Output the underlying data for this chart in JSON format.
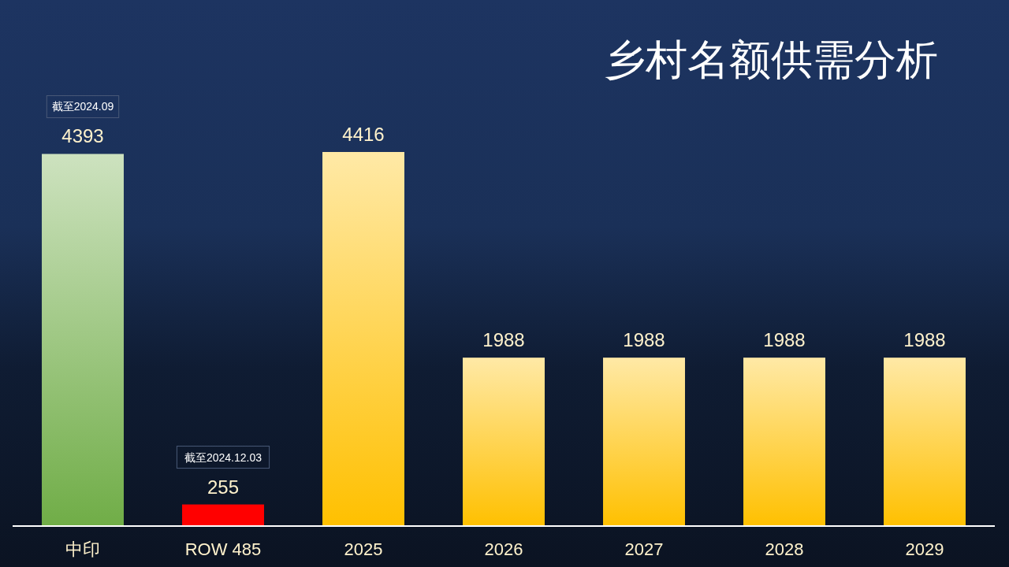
{
  "chart_data": {
    "type": "bar",
    "title": "乡村名额供需分析",
    "categories": [
      "中印",
      "ROW 485",
      "2025",
      "2026",
      "2027",
      "2028",
      "2029"
    ],
    "values": [
      4393,
      255,
      4416,
      1988,
      1988,
      1988,
      1988
    ],
    "colors": [
      "#70ad47",
      "#ff0000",
      "#ffc000",
      "#ffc000",
      "#ffc000",
      "#ffc000",
      "#ffc000"
    ],
    "data_labels": true,
    "annotations": [
      "截至2024.09",
      "截至2024.12.03"
    ]
  }
}
